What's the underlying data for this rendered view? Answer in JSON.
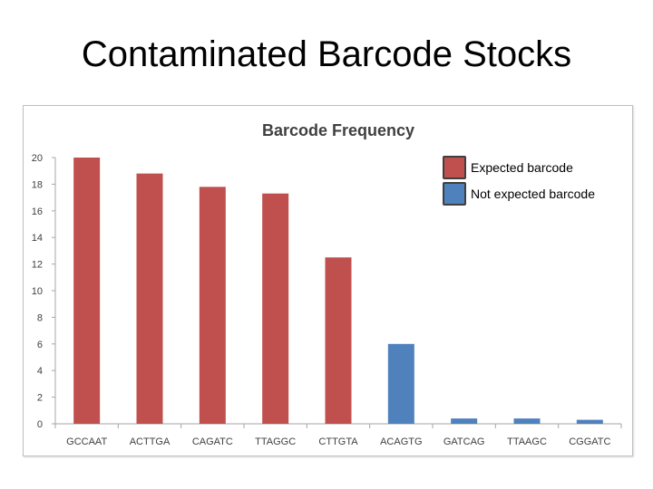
{
  "slide": {
    "title": "Contaminated Barcode Stocks"
  },
  "chart_data": {
    "type": "bar",
    "title": "Barcode Frequency",
    "categories": [
      "GCCAAT",
      "ACTTGA",
      "CAGATC",
      "TTAGGC",
      "CTTGTA",
      "ACAGTG",
      "GATCAG",
      "TTAAGC",
      "CGGATC"
    ],
    "values": [
      20,
      18.8,
      17.8,
      17.3,
      12.5,
      6.0,
      0.4,
      0.4,
      0.3
    ],
    "bar_groups": [
      "expected",
      "expected",
      "expected",
      "expected",
      "expected",
      "not_expected",
      "not_expected",
      "not_expected",
      "not_expected"
    ],
    "ylim": [
      0,
      20
    ],
    "yticks": [
      0,
      2,
      4,
      6,
      8,
      10,
      12,
      14,
      16,
      18,
      20
    ],
    "grid": false,
    "legend_position": "top-right",
    "legend": [
      {
        "key": "expected",
        "label": "Expected barcode",
        "color": "#c0504d"
      },
      {
        "key": "not_expected",
        "label": "Not expected barcode",
        "color": "#4f81bd"
      }
    ]
  }
}
